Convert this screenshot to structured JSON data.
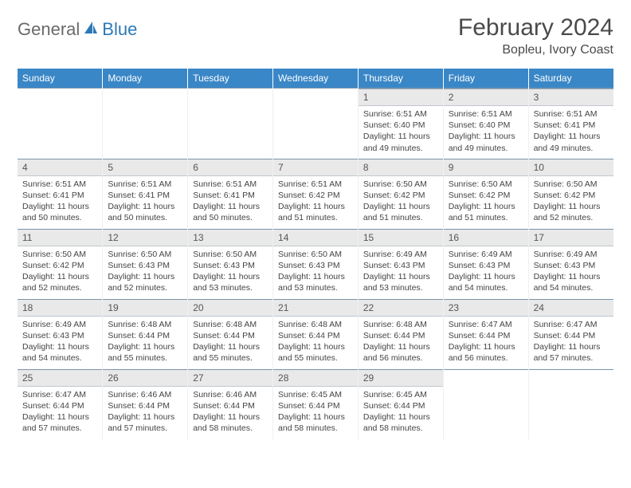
{
  "brand": {
    "part1": "General",
    "part2": "Blue"
  },
  "title": "February 2024",
  "location": "Bopleu, Ivory Coast",
  "colors": {
    "header_bg": "#3a87c7",
    "header_text": "#ffffff",
    "daynum_bg": "#e9e9e9",
    "border": "#7d94a8",
    "brand_gray": "#6a6a6a",
    "brand_blue": "#2d79b6"
  },
  "day_headers": [
    "Sunday",
    "Monday",
    "Tuesday",
    "Wednesday",
    "Thursday",
    "Friday",
    "Saturday"
  ],
  "weeks": [
    [
      null,
      null,
      null,
      null,
      {
        "n": "1",
        "sr": "6:51 AM",
        "ss": "6:40 PM",
        "dl": "11 hours and 49 minutes."
      },
      {
        "n": "2",
        "sr": "6:51 AM",
        "ss": "6:40 PM",
        "dl": "11 hours and 49 minutes."
      },
      {
        "n": "3",
        "sr": "6:51 AM",
        "ss": "6:41 PM",
        "dl": "11 hours and 49 minutes."
      }
    ],
    [
      {
        "n": "4",
        "sr": "6:51 AM",
        "ss": "6:41 PM",
        "dl": "11 hours and 50 minutes."
      },
      {
        "n": "5",
        "sr": "6:51 AM",
        "ss": "6:41 PM",
        "dl": "11 hours and 50 minutes."
      },
      {
        "n": "6",
        "sr": "6:51 AM",
        "ss": "6:41 PM",
        "dl": "11 hours and 50 minutes."
      },
      {
        "n": "7",
        "sr": "6:51 AM",
        "ss": "6:42 PM",
        "dl": "11 hours and 51 minutes."
      },
      {
        "n": "8",
        "sr": "6:50 AM",
        "ss": "6:42 PM",
        "dl": "11 hours and 51 minutes."
      },
      {
        "n": "9",
        "sr": "6:50 AM",
        "ss": "6:42 PM",
        "dl": "11 hours and 51 minutes."
      },
      {
        "n": "10",
        "sr": "6:50 AM",
        "ss": "6:42 PM",
        "dl": "11 hours and 52 minutes."
      }
    ],
    [
      {
        "n": "11",
        "sr": "6:50 AM",
        "ss": "6:42 PM",
        "dl": "11 hours and 52 minutes."
      },
      {
        "n": "12",
        "sr": "6:50 AM",
        "ss": "6:43 PM",
        "dl": "11 hours and 52 minutes."
      },
      {
        "n": "13",
        "sr": "6:50 AM",
        "ss": "6:43 PM",
        "dl": "11 hours and 53 minutes."
      },
      {
        "n": "14",
        "sr": "6:50 AM",
        "ss": "6:43 PM",
        "dl": "11 hours and 53 minutes."
      },
      {
        "n": "15",
        "sr": "6:49 AM",
        "ss": "6:43 PM",
        "dl": "11 hours and 53 minutes."
      },
      {
        "n": "16",
        "sr": "6:49 AM",
        "ss": "6:43 PM",
        "dl": "11 hours and 54 minutes."
      },
      {
        "n": "17",
        "sr": "6:49 AM",
        "ss": "6:43 PM",
        "dl": "11 hours and 54 minutes."
      }
    ],
    [
      {
        "n": "18",
        "sr": "6:49 AM",
        "ss": "6:43 PM",
        "dl": "11 hours and 54 minutes."
      },
      {
        "n": "19",
        "sr": "6:48 AM",
        "ss": "6:44 PM",
        "dl": "11 hours and 55 minutes."
      },
      {
        "n": "20",
        "sr": "6:48 AM",
        "ss": "6:44 PM",
        "dl": "11 hours and 55 minutes."
      },
      {
        "n": "21",
        "sr": "6:48 AM",
        "ss": "6:44 PM",
        "dl": "11 hours and 55 minutes."
      },
      {
        "n": "22",
        "sr": "6:48 AM",
        "ss": "6:44 PM",
        "dl": "11 hours and 56 minutes."
      },
      {
        "n": "23",
        "sr": "6:47 AM",
        "ss": "6:44 PM",
        "dl": "11 hours and 56 minutes."
      },
      {
        "n": "24",
        "sr": "6:47 AM",
        "ss": "6:44 PM",
        "dl": "11 hours and 57 minutes."
      }
    ],
    [
      {
        "n": "25",
        "sr": "6:47 AM",
        "ss": "6:44 PM",
        "dl": "11 hours and 57 minutes."
      },
      {
        "n": "26",
        "sr": "6:46 AM",
        "ss": "6:44 PM",
        "dl": "11 hours and 57 minutes."
      },
      {
        "n": "27",
        "sr": "6:46 AM",
        "ss": "6:44 PM",
        "dl": "11 hours and 58 minutes."
      },
      {
        "n": "28",
        "sr": "6:45 AM",
        "ss": "6:44 PM",
        "dl": "11 hours and 58 minutes."
      },
      {
        "n": "29",
        "sr": "6:45 AM",
        "ss": "6:44 PM",
        "dl": "11 hours and 58 minutes."
      },
      null,
      null
    ]
  ],
  "labels": {
    "sunrise": "Sunrise:",
    "sunset": "Sunset:",
    "daylight": "Daylight:"
  }
}
